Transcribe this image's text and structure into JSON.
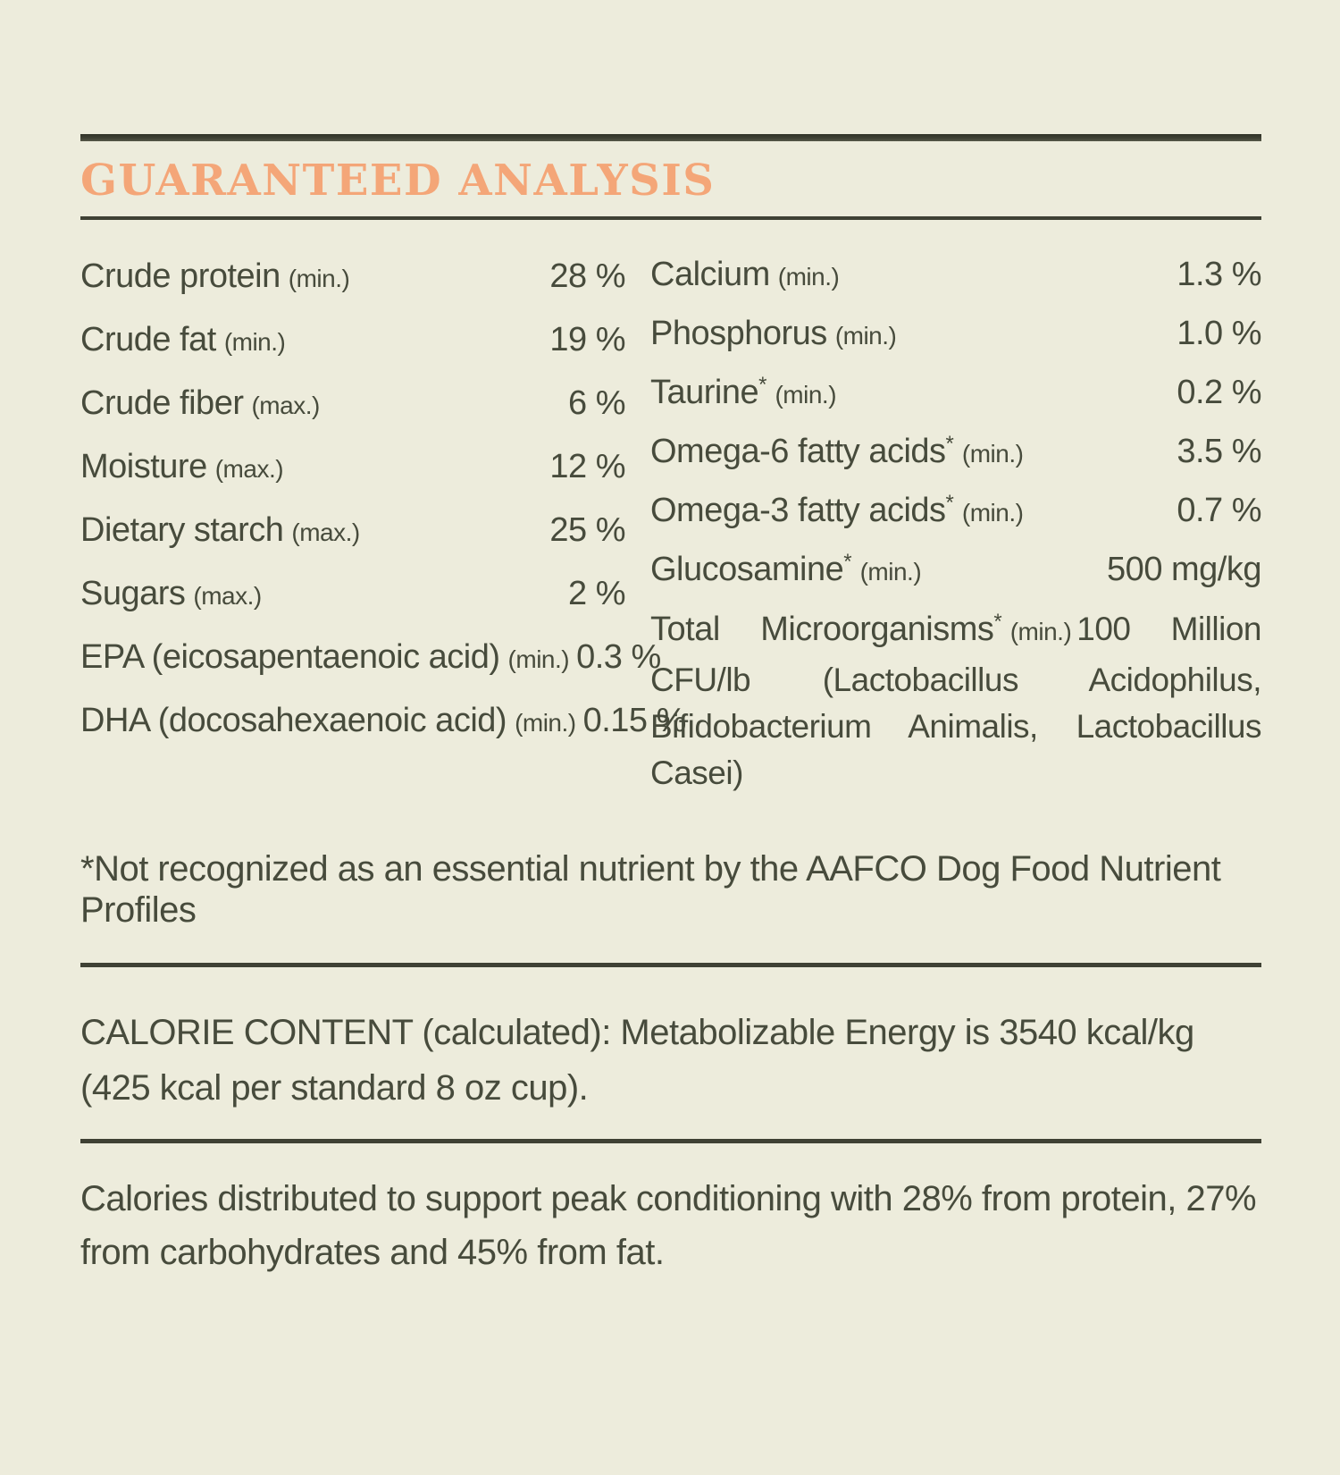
{
  "title": "GUARANTEED ANALYSIS",
  "colors": {
    "background": "#edecdc",
    "text": "#474b3c",
    "rule": "#3f4134",
    "heading_accent": "#f4a678"
  },
  "analysis": {
    "left": [
      {
        "name": "Crude protein",
        "qualifier": "(min.)",
        "value": "28 %"
      },
      {
        "name": "Crude fat",
        "qualifier": "(min.)",
        "value": "19 %"
      },
      {
        "name": "Crude fiber",
        "qualifier": "(max.)",
        "value": "6 %"
      },
      {
        "name": "Moisture",
        "qualifier": "(max.)",
        "value": "12 %"
      },
      {
        "name": "Dietary starch",
        "qualifier": "(max.)",
        "value": "25 %"
      },
      {
        "name": "Sugars",
        "qualifier": "(max.)",
        "value": "2 %"
      },
      {
        "name": "EPA (eicosapentaenoic acid)",
        "qualifier": "(min.)",
        "value": "0.3 %"
      },
      {
        "name": "DHA (docosahexaenoic acid)",
        "qualifier": "(min.)",
        "value": "0.15 %"
      }
    ],
    "right": [
      {
        "name": "Calcium",
        "sup": "",
        "qualifier": "(min.)",
        "value": "1.3 %"
      },
      {
        "name": "Phosphorus",
        "sup": "",
        "qualifier": "(min.)",
        "value": "1.0 %"
      },
      {
        "name": "Taurine",
        "sup": "*",
        "qualifier": "(min.)",
        "value": "0.2 %"
      },
      {
        "name": "Omega-6 fatty acids",
        "sup": "*",
        "qualifier": "(min.)",
        "value": "3.5 %"
      },
      {
        "name": "Omega-3 fatty acids",
        "sup": "*",
        "qualifier": "(min.)",
        "value": "0.7 %"
      },
      {
        "name": "Glucosamine",
        "sup": "*",
        "qualifier": "(min.)",
        "value": "500 mg/kg"
      }
    ],
    "microorganisms": {
      "name": "Total Microorganisms",
      "sup": "*",
      "qualifier": "(min.)",
      "value": "100 Million CFU/lb",
      "detail": "(Lactobacillus Acidophilus, Bifidobacterium Animalis, Lactobacillus Casei)"
    }
  },
  "footnote": "*Not recognized as an essential nutrient by the AAFCO Dog Food Nutrient Profiles",
  "calorie_content": "CALORIE CONTENT (calculated): Metabolizable Energy is 3540 kcal/kg (425 kcal per standard 8 oz cup).",
  "calorie_distribution": "Calories distributed to support peak conditioning with 28% from protein, 27% from carbohydrates and 45% from fat."
}
